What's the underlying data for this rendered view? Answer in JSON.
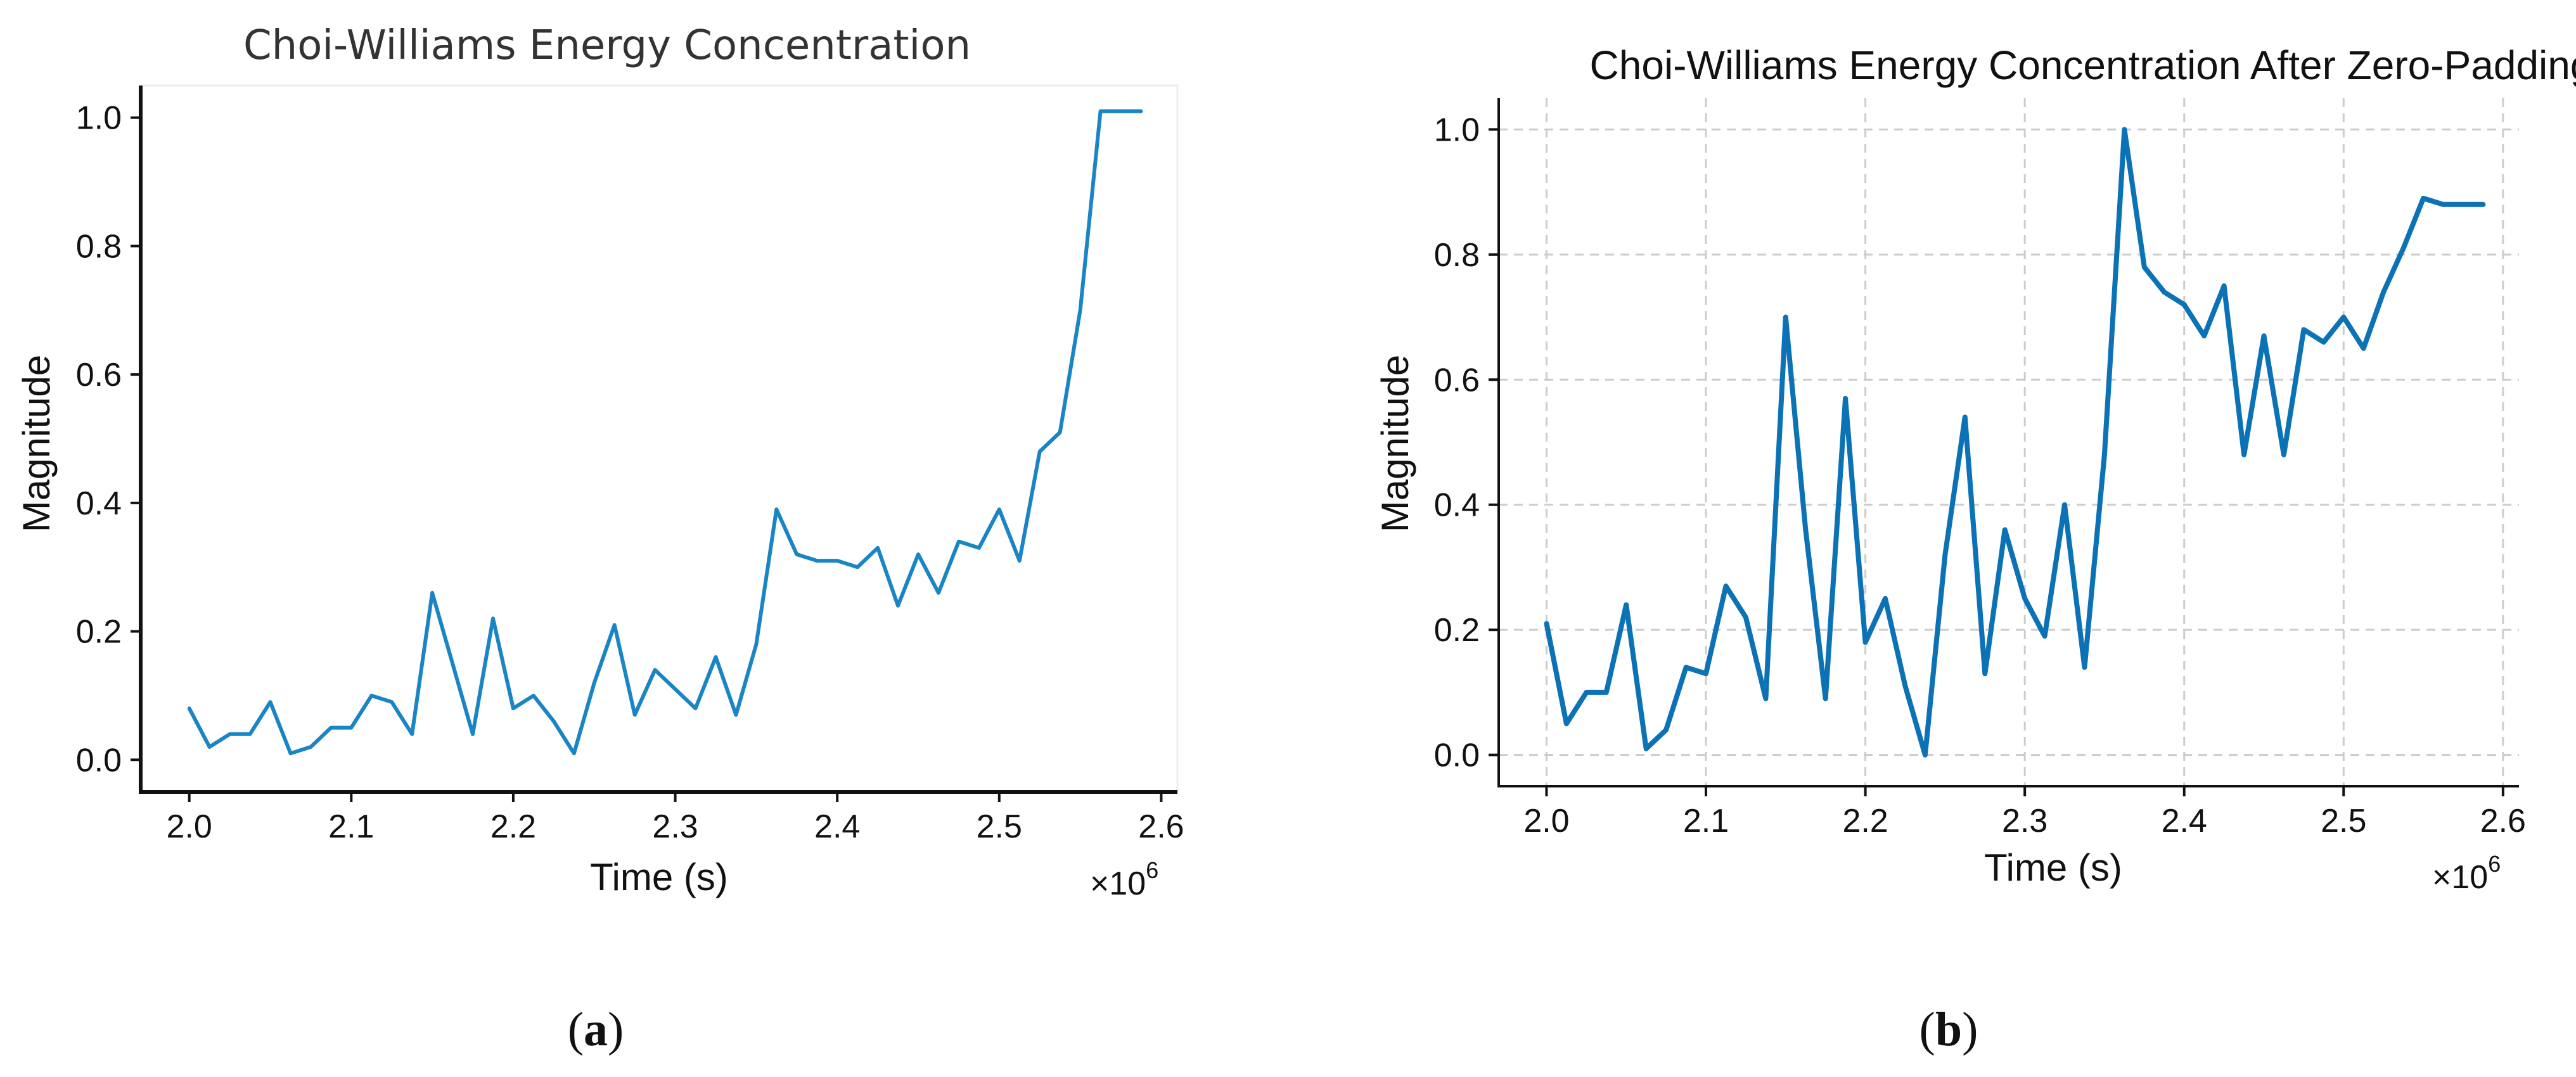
{
  "chart_data": [
    {
      "type": "line",
      "title": "Choi-Williams Energy Concentration",
      "xlabel": "Time (s)",
      "ylabel": "Magnitude",
      "xlim": [
        1.97,
        2.61
      ],
      "ylim": [
        -0.05,
        1.05
      ],
      "xticks": [
        2.0,
        2.1,
        2.2,
        2.3,
        2.4,
        2.5,
        2.6
      ],
      "xtick_labels": [
        "2.0",
        "2.1",
        "2.2",
        "2.3",
        "2.4",
        "2.5",
        "2.6"
      ],
      "yticks": [
        0.0,
        0.2,
        0.4,
        0.6,
        0.8,
        1.0
      ],
      "ytick_labels": [
        "0.0",
        "0.2",
        "0.4",
        "0.6",
        "0.8",
        "1.0"
      ],
      "x_multiplier": "×10",
      "x_multiplier_exp": "6",
      "grid": false,
      "color": "#1a85c4",
      "caption_letter": "a",
      "x": [
        2.0,
        2.0125,
        2.025,
        2.0375,
        2.05,
        2.0625,
        2.075,
        2.0875,
        2.1,
        2.1125,
        2.125,
        2.1375,
        2.15,
        2.1625,
        2.175,
        2.1875,
        2.2,
        2.2125,
        2.225,
        2.2375,
        2.25,
        2.2625,
        2.275,
        2.2875,
        2.3,
        2.3125,
        2.325,
        2.3375,
        2.35,
        2.3625,
        2.375,
        2.3875,
        2.4,
        2.4125,
        2.425,
        2.4375,
        2.45,
        2.4625,
        2.475,
        2.4875,
        2.5,
        2.5125,
        2.525,
        2.5375,
        2.55,
        2.5625,
        2.575,
        2.5875
      ],
      "y": [
        0.08,
        0.02,
        0.04,
        0.04,
        0.09,
        0.01,
        0.02,
        0.05,
        0.05,
        0.1,
        0.09,
        0.04,
        0.26,
        0.15,
        0.04,
        0.22,
        0.08,
        0.1,
        0.06,
        0.01,
        0.12,
        0.21,
        0.07,
        0.14,
        0.11,
        0.08,
        0.16,
        0.07,
        0.18,
        0.39,
        0.32,
        0.31,
        0.31,
        0.3,
        0.33,
        0.24,
        0.32,
        0.26,
        0.34,
        0.33,
        0.39,
        0.31,
        0.48,
        0.51,
        0.7,
        1.01,
        1.01,
        1.01
      ]
    },
    {
      "type": "line",
      "title": "Choi-Williams Energy Concentration After Zero-Padding",
      "xlabel": "Time (s)",
      "ylabel": "Magnitude",
      "xlim": [
        1.97,
        2.61
      ],
      "ylim": [
        -0.05,
        1.05
      ],
      "xticks": [
        2.0,
        2.1,
        2.2,
        2.3,
        2.4,
        2.5,
        2.6
      ],
      "xtick_labels": [
        "2.0",
        "2.1",
        "2.2",
        "2.3",
        "2.4",
        "2.5",
        "2.6"
      ],
      "yticks": [
        0.0,
        0.2,
        0.4,
        0.6,
        0.8,
        1.0
      ],
      "ytick_labels": [
        "0.0",
        "0.2",
        "0.4",
        "0.6",
        "0.8",
        "1.0"
      ],
      "x_multiplier": "×10",
      "x_multiplier_exp": "6",
      "grid": true,
      "color": "#0b72b5",
      "caption_letter": "b",
      "x": [
        2.0,
        2.0125,
        2.025,
        2.0375,
        2.05,
        2.0625,
        2.075,
        2.0875,
        2.1,
        2.1125,
        2.125,
        2.1375,
        2.15,
        2.1625,
        2.175,
        2.1875,
        2.2,
        2.2125,
        2.225,
        2.2375,
        2.25,
        2.2625,
        2.275,
        2.2875,
        2.3,
        2.3125,
        2.325,
        2.3375,
        2.35,
        2.3625,
        2.375,
        2.3875,
        2.4,
        2.4125,
        2.425,
        2.4375,
        2.45,
        2.4625,
        2.475,
        2.4875,
        2.5,
        2.5125,
        2.525,
        2.5375,
        2.55,
        2.5625,
        2.575,
        2.5875
      ],
      "y": [
        0.21,
        0.05,
        0.1,
        0.1,
        0.24,
        0.01,
        0.04,
        0.14,
        0.13,
        0.27,
        0.22,
        0.09,
        0.7,
        0.36,
        0.09,
        0.57,
        0.18,
        0.25,
        0.11,
        0.0,
        0.32,
        0.54,
        0.13,
        0.36,
        0.25,
        0.19,
        0.4,
        0.14,
        0.48,
        1.0,
        0.78,
        0.74,
        0.72,
        0.67,
        0.75,
        0.48,
        0.67,
        0.48,
        0.68,
        0.66,
        0.7,
        0.65,
        0.74,
        0.81,
        0.89,
        0.88,
        0.88,
        0.88
      ]
    }
  ]
}
